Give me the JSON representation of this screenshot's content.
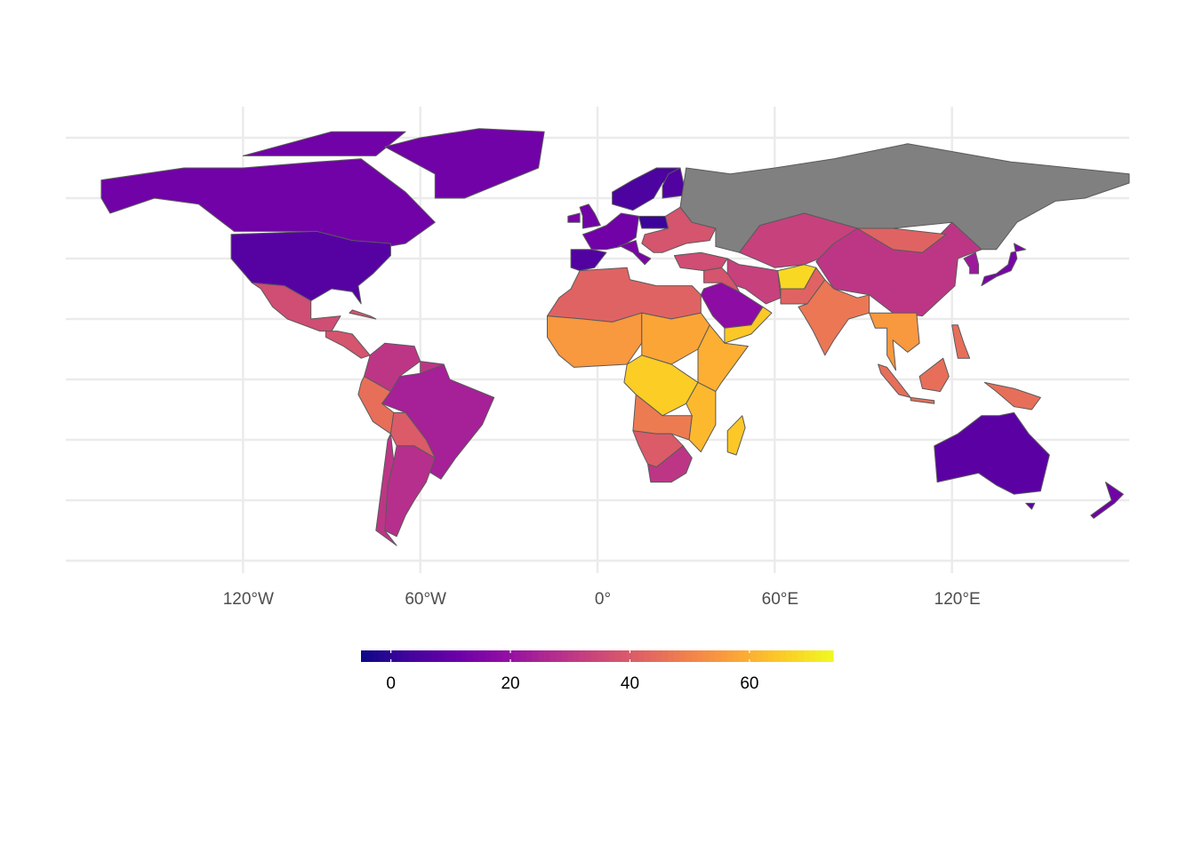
{
  "chart_data": {
    "type": "choropleth",
    "xlim": [
      -180,
      180
    ],
    "ylim": [
      -60,
      90
    ],
    "xticks": [
      {
        "value": -120,
        "label": "120°W"
      },
      {
        "value": -60,
        "label": "60°W"
      },
      {
        "value": 0,
        "label": "0°"
      },
      {
        "value": 60,
        "label": "60°E"
      },
      {
        "value": 120,
        "label": "120°E"
      }
    ],
    "ygrid": [
      -60,
      -40,
      -20,
      0,
      20,
      40,
      60,
      80
    ],
    "grid": true,
    "values": [
      12,
      12,
      12,
      7,
      36,
      38,
      38,
      30,
      30,
      24,
      45,
      40,
      28,
      30,
      12,
      6,
      12,
      14,
      14,
      2,
      5,
      6,
      38,
      36,
      null,
      33,
      30,
      42,
      33,
      68,
      42,
      47,
      55,
      18,
      65,
      38,
      42,
      55,
      58,
      60,
      66,
      62,
      48,
      40,
      30,
      65,
      14,
      22,
      45,
      45,
      45,
      45,
      45,
      8,
      8,
      12
    ],
    "colors": [
      "#0d0887",
      "#41049d",
      "#6a00a8",
      "#8f0da4",
      "#b12a90",
      "#cc4778",
      "#e16462",
      "#f2844b",
      "#fca636",
      "#fcce25",
      "#f0f921"
    ],
    "na_color": "#808080",
    "colorbar_lim": [
      -5,
      74
    ],
    "colorbar_ticks": [
      0,
      20,
      40,
      60
    ],
    "legend": "bottom"
  }
}
